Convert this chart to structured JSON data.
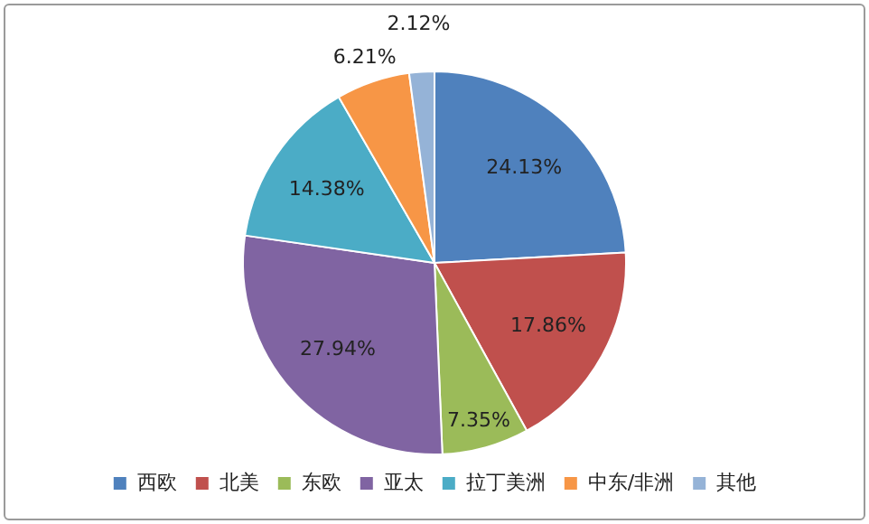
{
  "chart_data": {
    "type": "pie",
    "categories": [
      "西欧",
      "北美",
      "东欧",
      "亚太",
      "拉丁美洲",
      "中东/非洲",
      "其他"
    ],
    "values": [
      24.13,
      17.86,
      7.35,
      27.94,
      14.38,
      6.21,
      2.12
    ],
    "colors": [
      "#4f81bd",
      "#c0504d",
      "#9bbb59",
      "#8064a2",
      "#4bacc6",
      "#f79646",
      "#95b3d7"
    ],
    "value_labels": [
      "24.13%",
      "17.86%",
      "7.35%",
      "27.94%",
      "14.38%",
      "6.21%",
      "2.12%"
    ],
    "legend": "bottom"
  }
}
